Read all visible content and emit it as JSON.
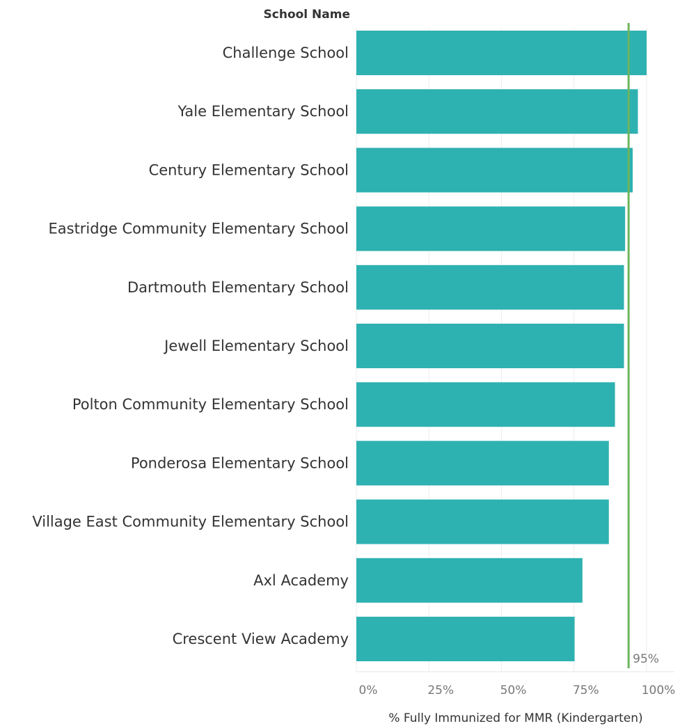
{
  "chart_data": {
    "type": "bar",
    "orientation": "horizontal",
    "row_header": "School Name",
    "categories": [
      "Challenge School",
      "Yale Elementary School",
      "Century Elementary School",
      "Eastridge Community Elementary School",
      "Dartmouth Elementary School",
      "Jewell Elementary School",
      "Polton Community Elementary School",
      "Ponderosa Elementary School",
      "Village East Community Elementary School",
      "Axl Academy",
      "Crescent View Academy"
    ],
    "values": [
      100,
      97,
      95.2,
      92.6,
      92.2,
      92.2,
      89.1,
      87,
      87,
      77.9,
      75.2
    ],
    "xlabel": "% Fully Immunized for MMR (Kindergarten)",
    "ylabel": "",
    "xlim": [
      0,
      100
    ],
    "xticks": [
      "0%",
      "25%",
      "50%",
      "75%",
      "100%"
    ],
    "reference_line": {
      "value": 95,
      "label": "95%",
      "color": "#6cb55b"
    },
    "bar_color": "#2eb1b1",
    "grid": true
  }
}
